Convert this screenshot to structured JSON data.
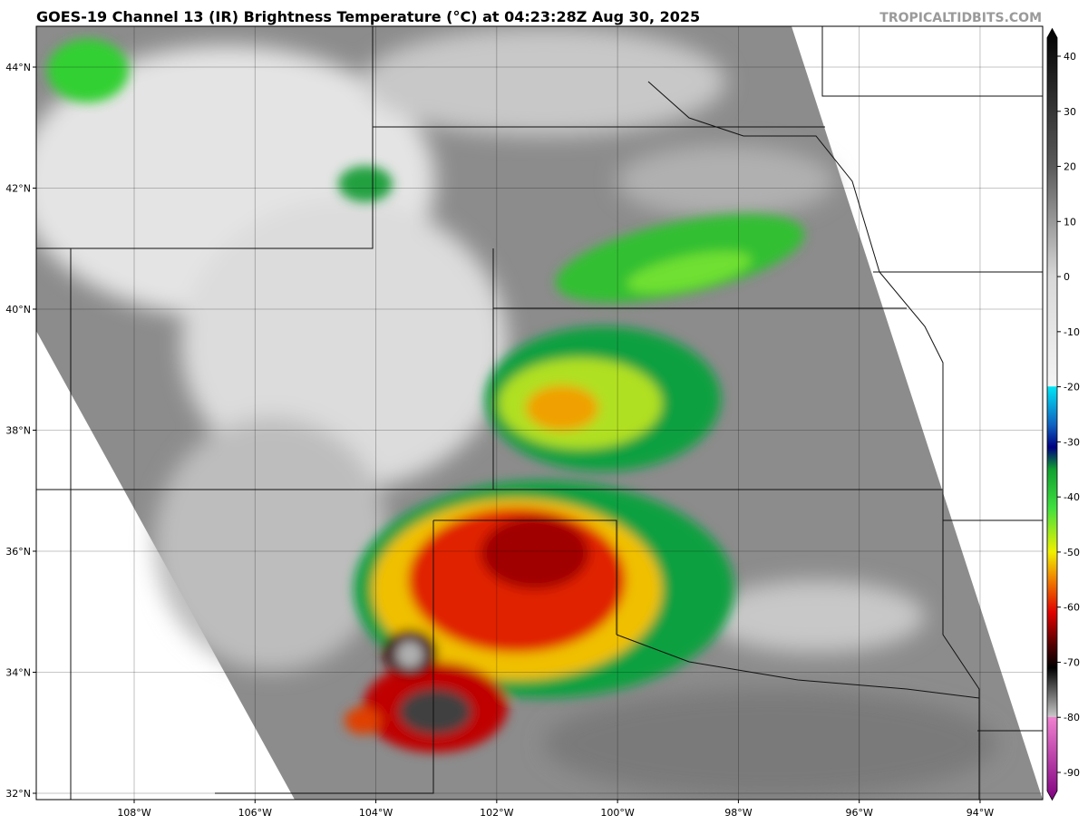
{
  "title": "GOES-19 Channel 13 (IR) Brightness Temperature (°C) at 04:23:28Z Aug 30, 2025",
  "watermark": "TROPICALTIDBITS.COM",
  "map": {
    "lat_ticks": [
      {
        "value": 32,
        "label": "32°N"
      },
      {
        "value": 34,
        "label": "34°N"
      },
      {
        "value": 36,
        "label": "36°N"
      },
      {
        "value": 38,
        "label": "38°N"
      },
      {
        "value": 40,
        "label": "40°N"
      },
      {
        "value": 42,
        "label": "42°N"
      },
      {
        "value": 44,
        "label": "44°N"
      }
    ],
    "lon_ticks": [
      {
        "value": -108,
        "label": "108°W"
      },
      {
        "value": -106,
        "label": "106°W"
      },
      {
        "value": -104,
        "label": "104°W"
      },
      {
        "value": -102,
        "label": "102°W"
      },
      {
        "value": -100,
        "label": "100°W"
      },
      {
        "value": -98,
        "label": "98°W"
      },
      {
        "value": -96,
        "label": "96°W"
      },
      {
        "value": -94,
        "label": "94°W"
      }
    ],
    "grid": true
  },
  "colorbar": {
    "lim": [
      -95,
      45
    ],
    "ticks": [
      40,
      30,
      20,
      10,
      0,
      -10,
      -20,
      -30,
      -40,
      -50,
      -60,
      -70,
      -80,
      -90
    ],
    "colormap": [
      {
        "value": 45,
        "color": "#000000"
      },
      {
        "value": 20,
        "color": "#5a5a5a"
      },
      {
        "value": 0,
        "color": "#d8d8d8"
      },
      {
        "value": -19.9,
        "color": "#f4f4f4"
      },
      {
        "value": -20,
        "color": "#00e5f5"
      },
      {
        "value": -27,
        "color": "#1060c0"
      },
      {
        "value": -31,
        "color": "#000080"
      },
      {
        "value": -35,
        "color": "#10a030"
      },
      {
        "value": -42,
        "color": "#40e040"
      },
      {
        "value": -50,
        "color": "#f0f000"
      },
      {
        "value": -55,
        "color": "#f08000"
      },
      {
        "value": -61,
        "color": "#e00000"
      },
      {
        "value": -67,
        "color": "#500000"
      },
      {
        "value": -71,
        "color": "#000000"
      },
      {
        "value": -79.9,
        "color": "#c8c8c8"
      },
      {
        "value": -80,
        "color": "#f080d0"
      },
      {
        "value": -95,
        "color": "#800080"
      }
    ]
  }
}
